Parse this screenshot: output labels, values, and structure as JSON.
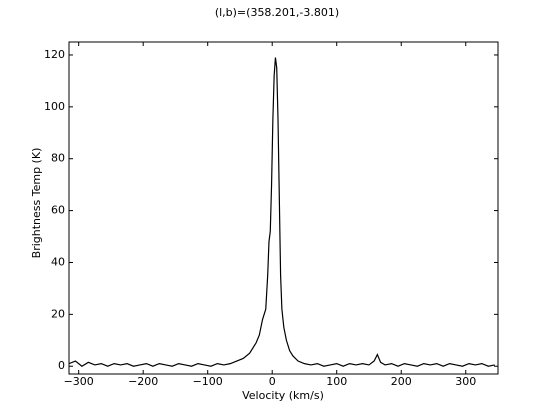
{
  "chart_data": {
    "type": "line",
    "title": "(l,b)=(358.201,-3.801)",
    "xlabel": "Velocity (km/s)",
    "ylabel": "Brightness Temp (K)",
    "x": [
      -315,
      -305,
      -295,
      -285,
      -275,
      -265,
      -255,
      -245,
      -235,
      -225,
      -215,
      -205,
      -195,
      -185,
      -175,
      -165,
      -155,
      -145,
      -135,
      -125,
      -115,
      -105,
      -95,
      -85,
      -75,
      -65,
      -55,
      -45,
      -35,
      -25,
      -20,
      -15,
      -10,
      -7,
      -5,
      -3,
      -1,
      1,
      3,
      5,
      7,
      9,
      11,
      13,
      15,
      18,
      22,
      27,
      32,
      40,
      50,
      60,
      70,
      80,
      90,
      100,
      110,
      120,
      130,
      140,
      150,
      158,
      163,
      168,
      175,
      185,
      195,
      205,
      215,
      225,
      235,
      245,
      255,
      265,
      275,
      285,
      295,
      305,
      315,
      325,
      335,
      345
    ],
    "series": [
      {
        "color": "#000000",
        "values": [
          1,
          2,
          0,
          1.5,
          0.5,
          1,
          0,
          1,
          0.5,
          1,
          0,
          0.5,
          1,
          0,
          1,
          0.5,
          0,
          1,
          0.5,
          0,
          1,
          0.5,
          0,
          1,
          0.5,
          1,
          2,
          3,
          5,
          9,
          12,
          18,
          22,
          35,
          48,
          52,
          70,
          95,
          112,
          119,
          115,
          95,
          65,
          35,
          22,
          15,
          10,
          6,
          4,
          2,
          1,
          0.5,
          1,
          0,
          0.5,
          1,
          0,
          1,
          0.5,
          1,
          0.5,
          2,
          4.5,
          1.5,
          0.5,
          1,
          0,
          1,
          0.5,
          0,
          1,
          0.5,
          1,
          0,
          1,
          0.5,
          0,
          1,
          0.5,
          1,
          0,
          0.5
        ]
      }
    ],
    "xlim": [
      -315,
      350
    ],
    "ylim": [
      -3,
      125
    ],
    "xticks": [
      {
        "value": -300,
        "label": "−300"
      },
      {
        "value": -200,
        "label": "−200"
      },
      {
        "value": -100,
        "label": "−100"
      },
      0,
      100,
      200,
      300
    ],
    "yticks": [
      0,
      20,
      40,
      60,
      80,
      100,
      120
    ]
  }
}
